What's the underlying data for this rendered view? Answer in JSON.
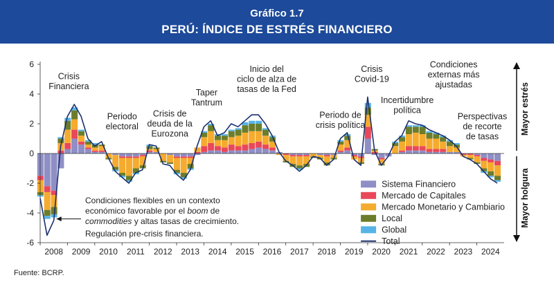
{
  "header": {
    "title": "Gráfico 1.7",
    "subtitle": "PERÚ: ÍNDICE DE ESTRÉS FINANCIERO"
  },
  "source": "Fuente: BCRP.",
  "chart_data": {
    "type": "bar",
    "stacked": true,
    "title": "PERÚ: ÍNDICE DE ESTRÉS FINANCIERO",
    "xlabel": "",
    "ylabel": "",
    "xlim": [
      2008,
      2025
    ],
    "ylim": [
      -6,
      6
    ],
    "yticks": [
      6,
      4,
      2,
      0,
      -2,
      -4,
      -6
    ],
    "xticks": [
      "2008",
      "2009",
      "2010",
      "2011",
      "2012",
      "2013",
      "2014",
      "2015",
      "2016",
      "2017",
      "2018",
      "2019",
      "2020",
      "2021",
      "2022",
      "2023",
      "2024"
    ],
    "grid": false,
    "legend_position": "bottom-right",
    "right_labels": {
      "up": "Mayor estrés",
      "down": "Mayor holgura"
    },
    "x": [
      2008.0,
      2008.25,
      2008.5,
      2008.75,
      2009.0,
      2009.25,
      2009.5,
      2009.75,
      2010.0,
      2010.25,
      2010.5,
      2010.75,
      2011.0,
      2011.25,
      2011.5,
      2011.75,
      2012.0,
      2012.25,
      2012.5,
      2012.75,
      2013.0,
      2013.25,
      2013.5,
      2013.75,
      2014.0,
      2014.25,
      2014.5,
      2014.75,
      2015.0,
      2015.25,
      2015.5,
      2015.75,
      2016.0,
      2016.25,
      2016.5,
      2016.75,
      2017.0,
      2017.25,
      2017.5,
      2017.75,
      2018.0,
      2018.25,
      2018.5,
      2018.75,
      2019.0,
      2019.25,
      2019.5,
      2019.75,
      2020.0,
      2020.25,
      2020.5,
      2020.75,
      2021.0,
      2021.25,
      2021.5,
      2021.75,
      2022.0,
      2022.25,
      2022.5,
      2022.75,
      2023.0,
      2023.25,
      2023.5,
      2023.75,
      2024.0,
      2024.25,
      2024.5,
      2024.75
    ],
    "series": [
      {
        "name": "Sistema Financiero",
        "color": "#8f8fc6",
        "values": [
          -1.5,
          -2.2,
          -2.5,
          -1.0,
          0.3,
          1.0,
          0.6,
          0.3,
          0.1,
          0.1,
          0,
          -0.1,
          -0.2,
          -0.2,
          -0.2,
          -0.1,
          0.1,
          0.1,
          0,
          -0.1,
          -0.2,
          -0.2,
          -0.2,
          -0.1,
          0.1,
          0.2,
          0.2,
          0.1,
          0.2,
          0.2,
          0.2,
          0.3,
          0.4,
          0.3,
          0.2,
          0.1,
          0,
          -0.1,
          -0.1,
          -0.1,
          0,
          -0.1,
          -0.1,
          -0.1,
          0.1,
          0.2,
          -0.1,
          -0.2,
          1.0,
          -0.1,
          -0.3,
          -0.2,
          0,
          0.1,
          0.2,
          0.2,
          0.2,
          0.1,
          0.1,
          0.1,
          0.1,
          0.1,
          0,
          0,
          -0.1,
          -0.3,
          -0.4,
          -0.5
        ]
      },
      {
        "name": "Mercado de Capitales",
        "color": "#e8485a",
        "values": [
          -0.3,
          -0.4,
          -0.3,
          0.2,
          0.4,
          0.6,
          0.2,
          0.1,
          0.1,
          0.1,
          0,
          0,
          -0.1,
          -0.1,
          -0.1,
          -0.1,
          0.1,
          0,
          0,
          0,
          -0.1,
          -0.1,
          -0.1,
          0.1,
          0.4,
          0.5,
          0.3,
          0.3,
          0.4,
          0.3,
          0.4,
          0.4,
          0.4,
          0.3,
          0.2,
          0,
          -0.1,
          -0.1,
          -0.1,
          -0.1,
          0,
          0,
          -0.1,
          0,
          0.1,
          0.2,
          -0.1,
          -0.1,
          0.8,
          0.1,
          -0.1,
          0,
          0,
          0.1,
          0.3,
          0.3,
          0.3,
          0.2,
          0.2,
          0.2,
          0,
          0,
          -0.1,
          -0.1,
          -0.1,
          -0.2,
          -0.2,
          -0.3
        ]
      },
      {
        "name": "Mercado Monetario y Cambiario",
        "color": "#f5ab2e",
        "values": [
          -0.8,
          -1.2,
          -0.8,
          0.5,
          0.9,
          0.7,
          0.4,
          0.2,
          0.2,
          0.3,
          -0.3,
          -0.8,
          -1.0,
          -1.2,
          -0.7,
          -0.6,
          0.1,
          0.2,
          -0.5,
          -0.5,
          -0.8,
          -1.0,
          -0.4,
          0.3,
          0.6,
          0.8,
          0.4,
          0.5,
          0.5,
          0.7,
          0.8,
          0.8,
          0.7,
          0.6,
          0.4,
          -0.1,
          -0.4,
          -0.5,
          -0.6,
          -0.5,
          -0.2,
          -0.2,
          -0.4,
          -0.2,
          0.4,
          0.5,
          -0.2,
          -0.3,
          0.8,
          0.1,
          -0.3,
          0,
          0.5,
          0.6,
          0.8,
          0.9,
          0.8,
          0.7,
          0.7,
          0.5,
          0.4,
          0.3,
          -0.1,
          -0.2,
          -0.4,
          -0.5,
          -0.6,
          -0.7
        ]
      },
      {
        "name": "Local",
        "color": "#6b7d2a",
        "values": [
          -0.2,
          -0.4,
          -0.5,
          0.3,
          0.6,
          0.6,
          0.3,
          0.2,
          0.2,
          0.1,
          -0.1,
          -0.2,
          -0.2,
          -0.3,
          -0.3,
          -0.2,
          0.2,
          0.1,
          -0.1,
          -0.1,
          -0.2,
          -0.3,
          -0.3,
          0,
          0.3,
          0.4,
          0.3,
          0.3,
          0.4,
          0.4,
          0.5,
          0.5,
          0.5,
          0.4,
          0.3,
          0,
          -0.1,
          -0.2,
          -0.2,
          -0.2,
          -0.1,
          -0.1,
          -0.2,
          -0.1,
          0.2,
          0.3,
          0,
          -0.1,
          0.5,
          0.1,
          -0.1,
          0,
          0.2,
          0.3,
          0.5,
          0.4,
          0.5,
          0.4,
          0.3,
          0.3,
          0.3,
          0.2,
          0,
          -0.1,
          -0.1,
          -0.2,
          -0.3,
          -0.3
        ]
      },
      {
        "name": "Global",
        "color": "#57b4e6",
        "values": [
          -0.1,
          -0.2,
          -0.2,
          0.1,
          0.2,
          0.2,
          0.1,
          0.1,
          0.1,
          0,
          0,
          -0.1,
          -0.1,
          -0.1,
          -0.1,
          0,
          0.1,
          0,
          0,
          0,
          -0.1,
          -0.1,
          -0.1,
          0,
          0.1,
          0.1,
          0.1,
          0.1,
          0.1,
          0.1,
          0.2,
          0.2,
          0.2,
          0.1,
          0.1,
          0,
          0,
          0,
          -0.1,
          0,
          0,
          0,
          0,
          0,
          0.1,
          0.1,
          0,
          0,
          0.3,
          0,
          0,
          0,
          0.1,
          0.1,
          0.1,
          0.1,
          0.1,
          0.1,
          0.1,
          0.1,
          0.1,
          0.1,
          0,
          0,
          0,
          -0.1,
          -0.1,
          -0.1
        ]
      }
    ],
    "total": {
      "name": "Total",
      "color": "#1a2f6e",
      "values": [
        -3.0,
        -5.5,
        -4.5,
        0.5,
        2.5,
        3.3,
        2.5,
        1.0,
        0.5,
        0.8,
        -0.3,
        -1.2,
        -1.6,
        -2.0,
        -1.3,
        -1.1,
        0.6,
        0.5,
        -0.7,
        -0.8,
        -1.4,
        -1.8,
        -1.1,
        0.5,
        1.8,
        2.2,
        1.2,
        1.4,
        2.0,
        1.8,
        2.2,
        2.6,
        2.6,
        2.0,
        1.2,
        0.1,
        -0.5,
        -0.8,
        -1.2,
        -0.8,
        -0.2,
        -0.3,
        -0.8,
        -0.4,
        1.0,
        1.4,
        -0.4,
        -0.8,
        3.8,
        0.2,
        -0.8,
        -0.2,
        0.8,
        1.2,
        2.2,
        2.0,
        1.9,
        1.6,
        1.4,
        1.2,
        0.9,
        0.5,
        -0.2,
        -0.4,
        -0.7,
        -1.2,
        -1.7,
        -2.0
      ]
    },
    "annotations": [
      {
        "x": 2009.05,
        "y": 5.0,
        "text": [
          "Crisis",
          "Financiera"
        ]
      },
      {
        "x": 2011.0,
        "y": 2.3,
        "text": [
          "Periodo",
          "electoral"
        ]
      },
      {
        "x": 2012.75,
        "y": 2.5,
        "text": [
          "Crisis de",
          "deuda de la",
          "Eurozona"
        ]
      },
      {
        "x": 2014.1,
        "y": 3.9,
        "text": [
          "Taper",
          "Tantrum"
        ]
      },
      {
        "x": 2016.3,
        "y": 5.5,
        "text": [
          "Inicio del",
          "ciclo de alza de",
          "tasas de la Fed"
        ]
      },
      {
        "x": 2019.0,
        "y": 2.4,
        "text": [
          "Periodo de",
          "crisis política"
        ]
      },
      {
        "x": 2020.15,
        "y": 5.5,
        "text": [
          "Crisis",
          "Covid-19"
        ]
      },
      {
        "x": 2021.45,
        "y": 3.4,
        "text": [
          "Incertidumbre",
          "política"
        ]
      },
      {
        "x": 2023.15,
        "y": 5.8,
        "text": [
          "Condiciones",
          "externas más",
          "ajustadas"
        ]
      },
      {
        "x": 2024.2,
        "y": 2.3,
        "text": [
          "Perspectivas",
          "de recorte",
          "de tasas"
        ]
      }
    ],
    "note": {
      "lines": [
        "Condiciones  flexibles en un contexto",
        "económico favorable por el boom de",
        "commodities y altas tasas de crecimiento.",
        "Regulación pre-crisis financiera."
      ]
    }
  }
}
